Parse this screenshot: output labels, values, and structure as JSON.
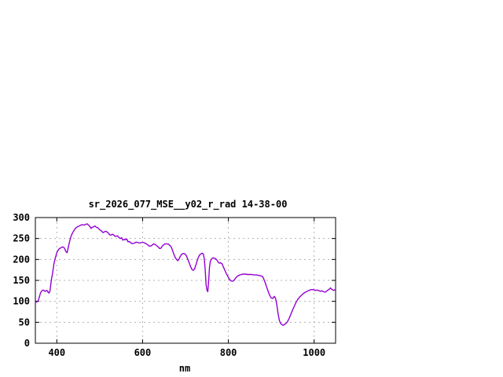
{
  "window": {
    "background": "#ffffff"
  },
  "chart_data": {
    "type": "line",
    "title": "sr_2026_077_MSE__y02_r_rad 14-38-00",
    "xlabel": "nm",
    "ylabel": "",
    "xlim": [
      350,
      1050
    ],
    "ylim": [
      0,
      300
    ],
    "x_ticks": [
      400,
      600,
      800,
      1000
    ],
    "y_ticks": [
      0,
      50,
      100,
      150,
      200,
      250,
      300
    ],
    "grid": true,
    "legend": "none",
    "line_color": "#9400d3",
    "grid_color": "#b0b0b0",
    "border_color": "#000000",
    "series": [
      {
        "name": "sr_2026_077_MSE__y02_r_rad",
        "x": [
          350,
          352,
          354,
          356,
          358,
          360,
          362,
          365,
          368,
          370,
          372,
          374,
          376,
          378,
          380,
          382,
          384,
          386,
          388,
          390,
          393,
          396,
          400,
          403,
          406,
          410,
          414,
          418,
          421,
          424,
          427,
          430,
          433,
          436,
          440,
          444,
          448,
          452,
          456,
          460,
          464,
          468,
          471,
          474,
          477,
          480,
          483,
          486,
          489,
          492,
          496,
          500,
          504,
          508,
          511,
          514,
          517,
          520,
          523,
          526,
          530,
          533,
          536,
          539,
          542,
          545,
          548,
          551,
          554,
          557,
          560,
          563,
          566,
          569,
          572,
          575,
          578,
          581,
          584,
          587,
          590,
          593,
          596,
          600,
          603,
          606,
          609,
          612,
          615,
          618,
          621,
          624,
          627,
          630,
          633,
          636,
          640,
          643,
          646,
          649,
          652,
          655,
          658,
          661,
          664,
          667,
          670,
          673,
          676,
          679,
          682,
          685,
          688,
          691,
          694,
          697,
          700,
          703,
          706,
          709,
          712,
          715,
          718,
          721,
          724,
          727,
          730,
          733,
          736,
          739,
          742,
          744,
          746,
          748,
          750,
          752,
          754,
          756,
          758,
          761,
          764,
          767,
          770,
          773,
          776,
          779,
          782,
          785,
          788,
          791,
          794,
          797,
          800,
          803,
          806,
          809,
          812,
          815,
          818,
          821,
          824,
          827,
          830,
          835,
          840,
          845,
          850,
          855,
          860,
          865,
          870,
          875,
          880,
          884,
          888,
          892,
          896,
          900,
          904,
          907,
          910,
          913,
          916,
          919,
          922,
          925,
          928,
          931,
          934,
          938,
          942,
          946,
          950,
          954,
          958,
          962,
          966,
          970,
          974,
          978,
          982,
          986,
          990,
          994,
          998,
          1002,
          1006,
          1010,
          1014,
          1018,
          1022,
          1026,
          1030,
          1034,
          1038,
          1042,
          1046,
          1050
        ],
        "y": [
          98,
          98,
          99,
          101,
          106,
          113,
          120,
          125,
          127,
          126,
          124,
          124,
          126,
          125,
          121,
          120,
          125,
          140,
          155,
          166,
          188,
          202,
          216,
          222,
          226,
          228,
          230,
          227,
          219,
          216,
          230,
          244,
          255,
          262,
          269,
          275,
          278,
          280,
          282,
          283,
          282,
          284,
          285,
          282,
          279,
          274,
          277,
          278,
          280,
          277,
          275,
          271,
          268,
          264,
          266,
          267,
          266,
          263,
          259,
          258,
          260,
          258,
          255,
          256,
          256,
          252,
          250,
          252,
          246,
          248,
          247,
          249,
          242,
          243,
          240,
          238,
          238,
          239,
          241,
          241,
          240,
          239,
          240,
          241,
          240,
          239,
          237,
          235,
          232,
          232,
          233,
          236,
          237,
          235,
          233,
          230,
          226,
          227,
          232,
          235,
          237,
          237,
          237,
          236,
          233,
          229,
          221,
          212,
          205,
          200,
          197,
          201,
          208,
          212,
          214,
          214,
          212,
          207,
          199,
          191,
          183,
          176,
          174,
          177,
          186,
          196,
          205,
          211,
          213,
          215,
          212,
          200,
          175,
          140,
          127,
          123,
          150,
          182,
          196,
          201,
          204,
          203,
          202,
          199,
          194,
          191,
          192,
          190,
          183,
          176,
          169,
          163,
          157,
          152,
          149,
          148,
          149,
          153,
          157,
          160,
          162,
          163,
          164,
          165,
          165,
          164,
          164,
          164,
          163,
          163,
          162,
          161,
          159,
          150,
          138,
          126,
          115,
          108,
          107,
          112,
          107,
          92,
          70,
          54,
          47,
          44,
          43,
          45,
          47,
          52,
          60,
          70,
          80,
          89,
          98,
          105,
          110,
          114,
          118,
          121,
          123,
          125,
          127,
          128,
          128,
          126,
          127,
          126,
          124,
          125,
          123,
          122,
          125,
          128,
          132,
          128,
          126,
          129
        ]
      }
    ]
  }
}
